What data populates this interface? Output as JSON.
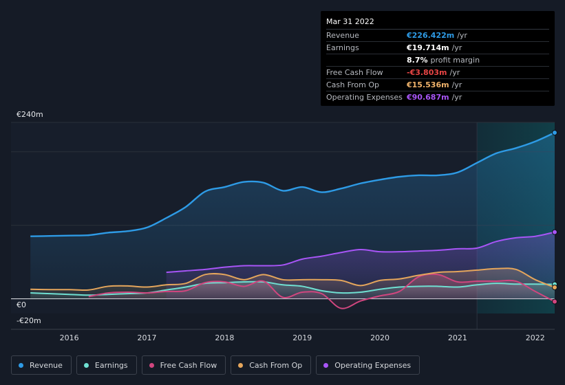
{
  "tooltip": {
    "date": "Mar 31 2022",
    "rows": [
      {
        "label": "Revenue",
        "value": "€226.422m",
        "unit": "/yr",
        "color": "#2e9be6"
      },
      {
        "label": "Earnings",
        "value": "€19.714m",
        "unit": "/yr",
        "color": "#ffffff"
      },
      {
        "label": "",
        "value": "8.7%",
        "unit": "profit margin",
        "color": "#ffffff"
      },
      {
        "label": "Free Cash Flow",
        "value": "-€3.803m",
        "unit": "/yr",
        "color": "#e84545"
      },
      {
        "label": "Cash From Op",
        "value": "€15.536m",
        "unit": "/yr",
        "color": "#f0b36b"
      },
      {
        "label": "Operating Expenses",
        "value": "€90.687m",
        "unit": "/yr",
        "color": "#a855f7"
      }
    ]
  },
  "legend": [
    {
      "label": "Revenue",
      "color": "#2e9be6"
    },
    {
      "label": "Earnings",
      "color": "#6fe0d2"
    },
    {
      "label": "Free Cash Flow",
      "color": "#d1467f"
    },
    {
      "label": "Cash From Op",
      "color": "#e5a65c"
    },
    {
      "label": "Operating Expenses",
      "color": "#a855f7"
    }
  ],
  "chart_data": {
    "type": "line",
    "ylim": [
      -20,
      240
    ],
    "y_tick_labels": [
      "€240m",
      "€0",
      "-€20m"
    ],
    "x_tick_labels": [
      "2016",
      "2017",
      "2018",
      "2019",
      "2020",
      "2021",
      "2022"
    ],
    "x_ticks": [
      2016,
      2017,
      2018,
      2019,
      2020,
      2021,
      2022
    ],
    "xlim": [
      2015.25,
      2022.25
    ],
    "highlight_from": 2021.25,
    "series": [
      {
        "name": "Revenue",
        "color": "#2e9be6",
        "fill": true,
        "x": [
          2015.5,
          2015.75,
          2016.0,
          2016.25,
          2016.5,
          2016.75,
          2017.0,
          2017.25,
          2017.5,
          2017.75,
          2018.0,
          2018.25,
          2018.5,
          2018.75,
          2019.0,
          2019.25,
          2019.5,
          2019.75,
          2020.0,
          2020.25,
          2020.5,
          2020.75,
          2021.0,
          2021.25,
          2021.5,
          2021.75,
          2022.0,
          2022.25
        ],
        "y": [
          85,
          85.5,
          86,
          86.5,
          90,
          92,
          97,
          110,
          125,
          146,
          152,
          159,
          158,
          147,
          152,
          145,
          150,
          157,
          162,
          166,
          168,
          168,
          172,
          185,
          198,
          205,
          214,
          226
        ]
      },
      {
        "name": "Earnings",
        "color": "#6fe0d2",
        "fill": true,
        "x": [
          2015.5,
          2015.75,
          2016.0,
          2016.25,
          2016.5,
          2016.75,
          2017.0,
          2017.25,
          2017.5,
          2017.75,
          2018.0,
          2018.25,
          2018.5,
          2018.75,
          2019.0,
          2019.25,
          2019.5,
          2019.75,
          2020.0,
          2020.25,
          2020.5,
          2020.75,
          2021.0,
          2021.25,
          2021.5,
          2021.75,
          2022.0,
          2022.25
        ],
        "y": [
          8,
          7,
          6,
          5,
          6,
          7,
          8,
          12,
          16,
          21,
          22,
          23,
          23,
          19,
          17,
          11,
          8,
          9,
          13,
          16,
          17,
          17,
          16,
          19,
          21,
          20,
          20,
          19.7
        ]
      },
      {
        "name": "Free Cash Flow",
        "color": "#d1467f",
        "fill": true,
        "x": [
          2016.25,
          2016.5,
          2016.75,
          2017.0,
          2017.25,
          2017.5,
          2017.75,
          2018.0,
          2018.25,
          2018.5,
          2018.75,
          2019.0,
          2019.25,
          2019.5,
          2019.75,
          2020.0,
          2020.25,
          2020.5,
          2020.75,
          2021.0,
          2021.25,
          2021.5,
          2021.75,
          2022.0,
          2022.25
        ],
        "y": [
          3,
          8,
          9,
          8,
          10,
          11,
          22,
          23,
          17,
          24,
          2,
          9,
          7,
          -13,
          -3,
          4,
          10,
          30,
          33,
          23,
          24,
          24,
          24,
          10,
          -3.8
        ]
      },
      {
        "name": "Cash From Op",
        "color": "#e5a65c",
        "fill": true,
        "x": [
          2015.5,
          2015.75,
          2016.0,
          2016.25,
          2016.5,
          2016.75,
          2017.0,
          2017.25,
          2017.5,
          2017.75,
          2018.0,
          2018.25,
          2018.5,
          2018.75,
          2019.0,
          2019.25,
          2019.5,
          2019.75,
          2020.0,
          2020.25,
          2020.5,
          2020.75,
          2021.0,
          2021.25,
          2021.5,
          2021.75,
          2022.0,
          2022.25
        ],
        "y": [
          13,
          12.5,
          12.5,
          12,
          17,
          17.5,
          16,
          19,
          21,
          33,
          33,
          26,
          33,
          26,
          26,
          26,
          25,
          18,
          25,
          27,
          32,
          36,
          37,
          39,
          41,
          40,
          26,
          15.5
        ]
      },
      {
        "name": "Operating Expenses",
        "color": "#a855f7",
        "fill": true,
        "x": [
          2017.25,
          2017.5,
          2017.75,
          2018.0,
          2018.25,
          2018.5,
          2018.75,
          2019.0,
          2019.25,
          2019.5,
          2019.75,
          2020.0,
          2020.25,
          2020.5,
          2020.75,
          2021.0,
          2021.25,
          2021.5,
          2021.75,
          2022.0,
          2022.25
        ],
        "y": [
          36,
          38,
          40,
          43,
          45,
          45,
          46,
          54,
          58,
          63,
          67,
          64,
          64,
          65,
          66,
          68,
          69,
          78,
          83,
          85,
          90.7
        ]
      }
    ]
  }
}
